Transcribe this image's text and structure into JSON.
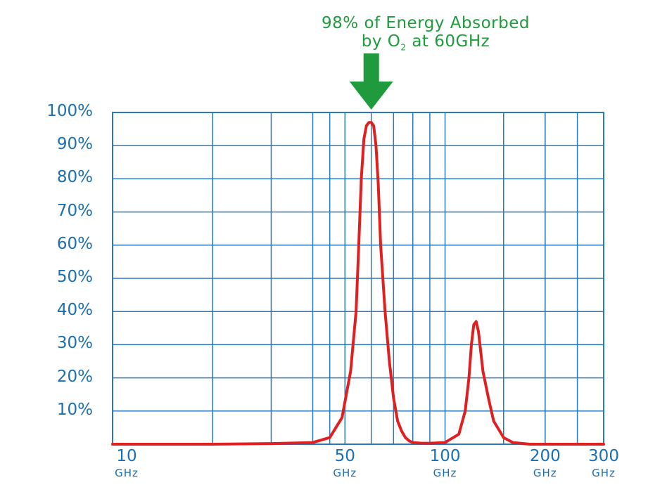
{
  "chart_data": {
    "type": "line",
    "title": "",
    "annotation": {
      "line1": "98% of Energy Absorbed",
      "line2_prefix": "by O",
      "line2_sub": "2",
      "line2_suffix": " at 60GHz"
    },
    "xlabel": "",
    "ylabel": "",
    "x_scale": "log",
    "xlim": [
      10,
      300
    ],
    "ylim": [
      0,
      100
    ],
    "y_ticks": [
      {
        "value": 100,
        "label": "100%"
      },
      {
        "value": 90,
        "label": "90%"
      },
      {
        "value": 80,
        "label": "80%"
      },
      {
        "value": 70,
        "label": "70%"
      },
      {
        "value": 60,
        "label": "60%"
      },
      {
        "value": 50,
        "label": "50%"
      },
      {
        "value": 40,
        "label": "40%"
      },
      {
        "value": 30,
        "label": "30%"
      },
      {
        "value": 20,
        "label": "20%"
      },
      {
        "value": 10,
        "label": "10%"
      }
    ],
    "x_ticks": [
      {
        "value": 10,
        "label": "10",
        "unit": "GHz"
      },
      {
        "value": 50,
        "label": "50",
        "unit": "GHz"
      },
      {
        "value": 100,
        "label": "100",
        "unit": "GHz"
      },
      {
        "value": 200,
        "label": "200",
        "unit": "GHz"
      },
      {
        "value": 300,
        "label": "300",
        "unit": "GHz"
      }
    ],
    "series": [
      {
        "x": [
          10,
          20,
          30,
          40,
          45,
          49,
          52,
          54,
          55,
          56,
          57,
          58,
          59,
          60,
          61,
          62,
          63,
          64,
          66,
          68,
          70,
          72,
          74,
          76,
          78,
          80,
          85,
          90,
          100,
          110,
          115,
          118,
          120,
          122,
          124,
          126,
          128,
          130,
          135,
          140,
          150,
          160,
          180,
          200,
          250,
          300
        ],
        "y": [
          0,
          0,
          0.2,
          0.5,
          2,
          8,
          22,
          40,
          60,
          80,
          92,
          96,
          97,
          97,
          96,
          90,
          78,
          60,
          40,
          25,
          14,
          7,
          4,
          2,
          1,
          0.5,
          0.3,
          0.3,
          0.5,
          3,
          10,
          20,
          30,
          36,
          37,
          34,
          28,
          22,
          14,
          7,
          2,
          0.5,
          0,
          0,
          0,
          0
        ]
      }
    ],
    "grid": true,
    "gridlines_x": [
      20,
      30,
      40,
      45,
      60,
      70,
      80,
      90,
      150,
      200,
      250
    ],
    "colors": {
      "line": "#e02020",
      "grid": "#2a79b8",
      "ticks": "#1c6fb0",
      "annotation": "#1f9a3c",
      "arrow": "#1f9a3c"
    }
  }
}
